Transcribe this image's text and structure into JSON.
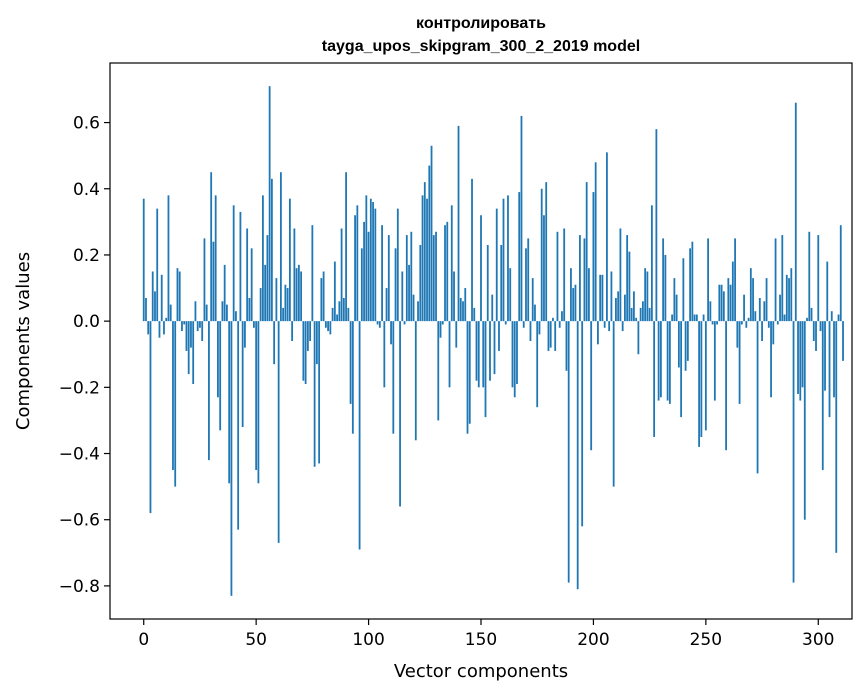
{
  "chart_data": {
    "type": "bar",
    "title_line1": "контролировать",
    "title_line2": "tayga_upos_skipgram_300_2_2019 model",
    "xlabel": "Vector components",
    "ylabel": "Components values",
    "xlim": [
      -15,
      315
    ],
    "ylim": [
      -0.9,
      0.78
    ],
    "xticks": [
      0,
      50,
      100,
      150,
      200,
      250,
      300
    ],
    "yticks": [
      -0.8,
      -0.6,
      -0.4,
      -0.2,
      0.0,
      0.2,
      0.4,
      0.6
    ],
    "ytick_labels": [
      "−0.8",
      "−0.6",
      "−0.4",
      "−0.2",
      "0.0",
      "0.2",
      "0.4",
      "0.6"
    ],
    "bar_color": "#1f77b4",
    "values": [
      0.37,
      0.07,
      -0.04,
      -0.58,
      0.15,
      0.09,
      0.34,
      -0.05,
      0.14,
      -0.04,
      0.01,
      0.38,
      0.05,
      -0.45,
      -0.5,
      0.16,
      0.15,
      -0.03,
      -0.01,
      -0.09,
      -0.16,
      -0.08,
      -0.19,
      0.06,
      -0.03,
      -0.02,
      -0.06,
      0.25,
      0.05,
      -0.42,
      0.45,
      0.24,
      0.38,
      -0.23,
      -0.33,
      0.06,
      0.17,
      0.05,
      -0.49,
      -0.83,
      0.35,
      0.03,
      -0.63,
      0.33,
      -0.32,
      -0.08,
      0.28,
      0.07,
      0.22,
      -0.02,
      -0.45,
      -0.49,
      0.1,
      0.38,
      0.17,
      0.26,
      0.71,
      0.43,
      -0.13,
      0.13,
      -0.67,
      0.45,
      0.04,
      0.11,
      0.1,
      0.37,
      -0.06,
      0.28,
      0.16,
      0.17,
      0.15,
      -0.18,
      -0.19,
      -0.09,
      -0.06,
      0.29,
      -0.44,
      -0.13,
      -0.43,
      0.13,
      0.15,
      -0.02,
      -0.03,
      -0.04,
      0.04,
      0.18,
      0.02,
      0.06,
      0.28,
      0.07,
      0.45,
      0.04,
      -0.25,
      -0.34,
      0.32,
      0.35,
      -0.69,
      0.22,
      0.3,
      0.38,
      0.27,
      0.37,
      0.36,
      0.34,
      -0.01,
      -0.02,
      0.29,
      -0.2,
      0.1,
      0.26,
      -0.07,
      -0.34,
      0.22,
      0.34,
      -0.56,
      0.15,
      -0.01,
      0.26,
      0.17,
      0.27,
      0.08,
      -0.36,
      0.06,
      0.23,
      0.38,
      0.42,
      0.37,
      0.47,
      0.53,
      0.26,
      0.27,
      -0.3,
      -0.05,
      -0.01,
      0.29,
      0.3,
      -0.2,
      0.35,
      0.15,
      -0.08,
      0.59,
      0.07,
      0.06,
      0.1,
      -0.34,
      -0.31,
      0.43,
      0.04,
      -0.18,
      -0.2,
      0.32,
      -0.2,
      -0.29,
      0.23,
      -0.18,
      0.08,
      -0.16,
      0.34,
      -0.09,
      0.23,
      0.37,
      -0.01,
      0.38,
      0.16,
      -0.2,
      -0.23,
      -0.19,
      0.39,
      0.62,
      -0.02,
      0.22,
      0.25,
      -0.06,
      0.13,
      0.05,
      -0.26,
      -0.04,
      0.4,
      0.32,
      0.42,
      -0.09,
      -0.08,
      0.01,
      -0.09,
      0.27,
      -0.02,
      0.03,
      0.28,
      -0.15,
      -0.79,
      0.16,
      0.1,
      0.11,
      -0.81,
      0.26,
      -0.62,
      0.25,
      0.42,
      0.16,
      -0.39,
      0.39,
      0.48,
      -0.07,
      0.14,
      0.14,
      -0.02,
      0.51,
      -0.03,
      0.15,
      -0.5,
      0.07,
      0.09,
      0.28,
      -0.03,
      0.08,
      0.26,
      0.21,
      0.04,
      0.09,
      0.01,
      -0.1,
      0.04,
      0.06,
      0.16,
      0.15,
      0.04,
      0.35,
      -0.35,
      0.58,
      -0.24,
      -0.23,
      0.25,
      0.2,
      -0.24,
      -0.25,
      0.02,
      0.13,
      0.08,
      -0.14,
      -0.29,
      0.19,
      -0.15,
      -0.12,
      0.22,
      0.24,
      0.02,
      0.02,
      -0.38,
      -0.35,
      0.02,
      -0.33,
      0.25,
      0.06,
      -0.01,
      -0.24,
      -0.01,
      0.11,
      0.11,
      0.09,
      -0.39,
      0.13,
      0.11,
      0.18,
      0.25,
      -0.08,
      -0.25,
      -0.01,
      0.08,
      -0.02,
      0.01,
      0.16,
      0.13,
      0.03,
      -0.46,
      0.07,
      -0.06,
      0.06,
      0.13,
      -0.02,
      -0.23,
      -0.07,
      0.25,
      -0.01,
      0.08,
      0.26,
      0.02,
      0.14,
      0.13,
      0.16,
      -0.79,
      0.66,
      -0.22,
      -0.24,
      -0.2,
      -0.6,
      0.01,
      0.27,
      0.04,
      -0.06,
      -0.09,
      0.26,
      -0.03,
      -0.45,
      -0.21,
      0.18,
      -0.29,
      0.03,
      -0.23,
      -0.7,
      0.02,
      0.29,
      -0.12
    ]
  }
}
